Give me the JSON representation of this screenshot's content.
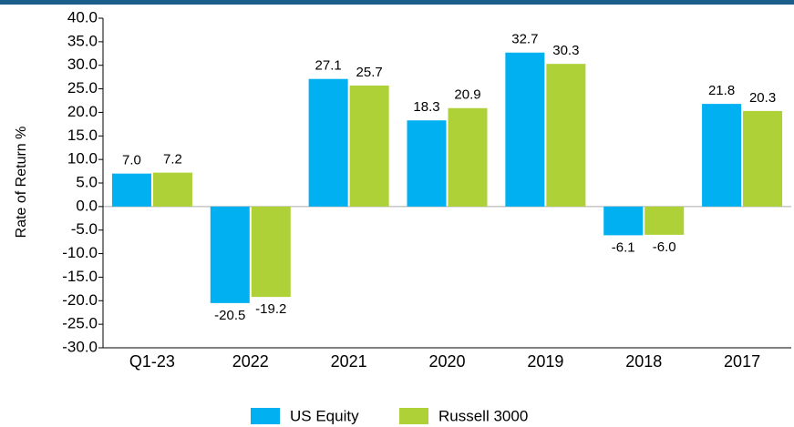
{
  "chart_data": {
    "type": "bar",
    "y_axis_label": "Rate of Return %",
    "categories": [
      "Q1-23",
      "2022",
      "2021",
      "2020",
      "2019",
      "2018",
      "2017"
    ],
    "series": [
      {
        "name": "US Equity",
        "color": "#00b0f0",
        "values": [
          7.0,
          -20.5,
          27.1,
          18.3,
          32.7,
          -6.1,
          21.8
        ],
        "value_labels": [
          "7.0",
          "-20.5",
          "27.1",
          "18.3",
          "32.7",
          "-6.1",
          "21.8"
        ]
      },
      {
        "name": "Russell 3000",
        "color": "#add136",
        "values": [
          7.2,
          -19.2,
          25.7,
          20.9,
          30.3,
          -6.0,
          20.3
        ],
        "value_labels": [
          "7.2",
          "-19.2",
          "25.7",
          "20.9",
          "30.3",
          "-6.0",
          "20.3"
        ]
      }
    ],
    "ylim": [
      -30,
      40
    ],
    "yticks": [
      {
        "value": 40,
        "label": "40.0"
      },
      {
        "value": 35,
        "label": "35.0"
      },
      {
        "value": 30,
        "label": "30.0"
      },
      {
        "value": 25,
        "label": "25.0"
      },
      {
        "value": 20,
        "label": "20.0"
      },
      {
        "value": 15,
        "label": "15.0"
      },
      {
        "value": 10,
        "label": "10.0"
      },
      {
        "value": 5,
        "label": "5.0"
      },
      {
        "value": 0,
        "label": "0.0"
      },
      {
        "value": -5,
        "label": "-5.0"
      },
      {
        "value": -10,
        "label": "-10.0"
      },
      {
        "value": -15,
        "label": "-15.0"
      },
      {
        "value": -20,
        "label": "-20.0"
      },
      {
        "value": -25,
        "label": "-25.0"
      },
      {
        "value": -30,
        "label": "-30.0"
      }
    ],
    "legend": "bottom"
  }
}
